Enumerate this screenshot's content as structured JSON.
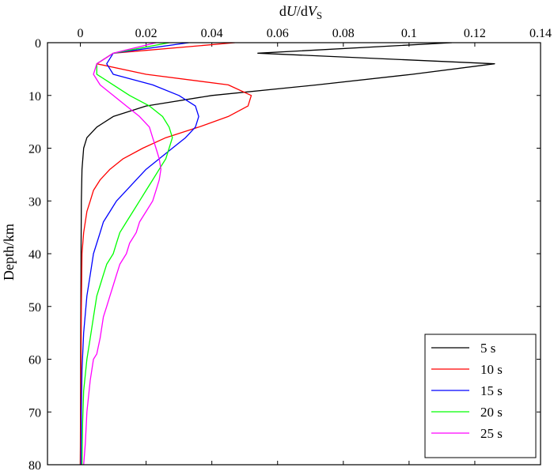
{
  "chart_data": {
    "type": "line",
    "title": "",
    "xlabel": {
      "prefix": "d",
      "U": "U",
      "sep": "/d",
      "V": "V",
      "sub": "S"
    },
    "ylabel": "Depth/km",
    "xlim": [
      -0.01,
      0.14
    ],
    "ylim": [
      0,
      80
    ],
    "y_inverted": true,
    "x_axis_position": "top",
    "grid": false,
    "legend_position": "bottom-right",
    "xticks": [
      0,
      0.02,
      0.04,
      0.06,
      0.08,
      0.1,
      0.12,
      0.14
    ],
    "xtick_labels": [
      "0",
      "0.02",
      "0.04",
      "0.06",
      "0.08",
      "0.1",
      "0.12",
      "0.14"
    ],
    "yticks": [
      0,
      10,
      20,
      30,
      40,
      50,
      60,
      70,
      80
    ],
    "ytick_labels": [
      "0",
      "10",
      "20",
      "30",
      "40",
      "50",
      "60",
      "70",
      "80"
    ],
    "series": [
      {
        "name": "5 s",
        "color": "#000000",
        "points": [
          [
            0.113,
            0
          ],
          [
            0.054,
            2
          ],
          [
            0.126,
            4
          ],
          [
            0.101,
            6
          ],
          [
            0.072,
            8
          ],
          [
            0.04,
            10
          ],
          [
            0.02,
            12
          ],
          [
            0.01,
            14
          ],
          [
            0.005,
            16
          ],
          [
            0.002,
            18
          ],
          [
            0.001,
            20
          ],
          [
            0.0005,
            24
          ],
          [
            0.0003,
            30
          ],
          [
            0.0002,
            40
          ],
          [
            0.0001,
            60
          ],
          [
            0.0,
            80
          ]
        ]
      },
      {
        "name": "10 s",
        "color": "#ff0000",
        "points": [
          [
            0.047,
            0
          ],
          [
            0.01,
            2
          ],
          [
            0.005,
            4
          ],
          [
            0.02,
            6
          ],
          [
            0.045,
            8
          ],
          [
            0.052,
            10
          ],
          [
            0.051,
            12
          ],
          [
            0.045,
            14
          ],
          [
            0.036,
            16
          ],
          [
            0.026,
            18
          ],
          [
            0.019,
            20
          ],
          [
            0.013,
            22
          ],
          [
            0.009,
            24
          ],
          [
            0.006,
            26
          ],
          [
            0.004,
            28
          ],
          [
            0.003,
            30
          ],
          [
            0.002,
            32
          ],
          [
            0.001,
            36
          ],
          [
            0.0005,
            40
          ],
          [
            0.0003,
            50
          ],
          [
            0.0002,
            60
          ],
          [
            0.0,
            80
          ]
        ]
      },
      {
        "name": "15 s",
        "color": "#0000ff",
        "points": [
          [
            0.033,
            0
          ],
          [
            0.01,
            2
          ],
          [
            0.008,
            4
          ],
          [
            0.01,
            6
          ],
          [
            0.022,
            8
          ],
          [
            0.03,
            10
          ],
          [
            0.035,
            12
          ],
          [
            0.036,
            14
          ],
          [
            0.035,
            16
          ],
          [
            0.032,
            18
          ],
          [
            0.028,
            20
          ],
          [
            0.024,
            22
          ],
          [
            0.02,
            24
          ],
          [
            0.017,
            26
          ],
          [
            0.014,
            28
          ],
          [
            0.011,
            30
          ],
          [
            0.009,
            32
          ],
          [
            0.007,
            34
          ],
          [
            0.006,
            36
          ],
          [
            0.004,
            40
          ],
          [
            0.003,
            44
          ],
          [
            0.002,
            48
          ],
          [
            0.001,
            55
          ],
          [
            0.0005,
            62
          ],
          [
            0.0003,
            70
          ],
          [
            0.0002,
            80
          ]
        ]
      },
      {
        "name": "20 s",
        "color": "#00ff00",
        "points": [
          [
            0.027,
            0
          ],
          [
            0.01,
            2
          ],
          [
            0.005,
            4
          ],
          [
            0.005,
            6
          ],
          [
            0.01,
            8
          ],
          [
            0.015,
            10
          ],
          [
            0.021,
            12
          ],
          [
            0.025,
            14
          ],
          [
            0.027,
            16
          ],
          [
            0.028,
            18
          ],
          [
            0.027,
            20
          ],
          [
            0.026,
            22
          ],
          [
            0.024,
            24
          ],
          [
            0.022,
            26
          ],
          [
            0.02,
            28
          ],
          [
            0.018,
            30
          ],
          [
            0.016,
            32
          ],
          [
            0.014,
            34
          ],
          [
            0.012,
            36
          ],
          [
            0.011,
            38
          ],
          [
            0.01,
            40
          ],
          [
            0.008,
            42
          ],
          [
            0.007,
            44
          ],
          [
            0.006,
            46
          ],
          [
            0.005,
            48
          ],
          [
            0.004,
            52
          ],
          [
            0.003,
            56
          ],
          [
            0.002,
            60
          ],
          [
            0.001,
            66
          ],
          [
            0.0007,
            72
          ],
          [
            0.0005,
            80
          ]
        ]
      },
      {
        "name": "25 s",
        "color": "#ff00ff",
        "points": [
          [
            0.023,
            0
          ],
          [
            0.01,
            2
          ],
          [
            0.005,
            4
          ],
          [
            0.004,
            6
          ],
          [
            0.006,
            8
          ],
          [
            0.01,
            10
          ],
          [
            0.014,
            12
          ],
          [
            0.018,
            14
          ],
          [
            0.021,
            16
          ],
          [
            0.022,
            18
          ],
          [
            0.023,
            20
          ],
          [
            0.024,
            22
          ],
          [
            0.0245,
            24
          ],
          [
            0.024,
            26
          ],
          [
            0.023,
            28
          ],
          [
            0.022,
            30
          ],
          [
            0.02,
            32
          ],
          [
            0.018,
            34
          ],
          [
            0.017,
            36
          ],
          [
            0.015,
            38
          ],
          [
            0.014,
            40
          ],
          [
            0.012,
            42
          ],
          [
            0.011,
            44
          ],
          [
            0.01,
            46
          ],
          [
            0.009,
            48
          ],
          [
            0.008,
            50
          ],
          [
            0.007,
            52
          ],
          [
            0.006,
            56
          ],
          [
            0.005,
            59
          ],
          [
            0.004,
            60
          ],
          [
            0.003,
            64
          ],
          [
            0.002,
            70
          ],
          [
            0.0015,
            76
          ],
          [
            0.001,
            80
          ]
        ]
      }
    ]
  }
}
